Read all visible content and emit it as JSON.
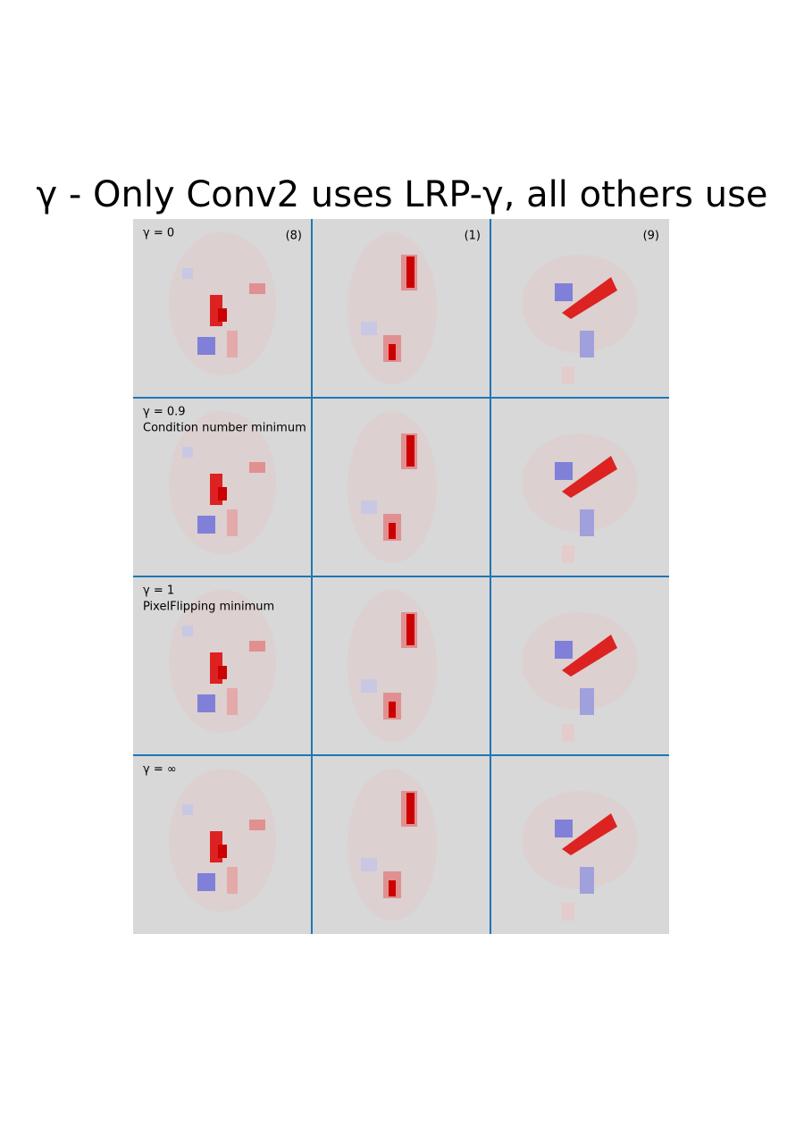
{
  "header": {
    "title": "γ   -   Only Conv2 uses LRP-γ, all others use"
  },
  "columns": [
    "(8)",
    "(1)",
    "(9)"
  ],
  "rows": [
    {
      "label": "γ = 0"
    },
    {
      "label": "γ = 0.9",
      "note": "Condition number minimum"
    },
    {
      "label": "γ = 1",
      "note": "PixelFlipping minimum"
    },
    {
      "label": "γ = ∞"
    }
  ]
}
